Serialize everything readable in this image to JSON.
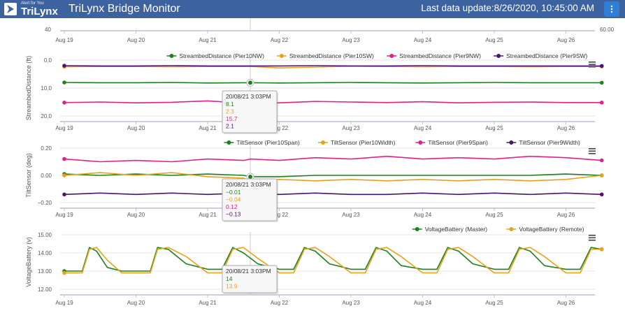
{
  "header": {
    "logo_tagline": "Alert for You",
    "logo_brand": "TriLynx",
    "title": "TriLynx Bridge Monitor",
    "last_update_label": "Last data update:",
    "last_update_value": "8/26/2020, 10:45:00 AM"
  },
  "tooltip_date": "20/08/21 3:03PM",
  "chart_data": [
    {
      "type": "line",
      "ylim": [
        40,
        60
      ],
      "y_ticks": [
        "40",
        "60.00"
      ],
      "categories": [
        "Aug 19",
        "Aug 20",
        "Aug 21",
        "Aug 22",
        "Aug 23",
        "Aug 24",
        "Aug 25",
        "Aug 26"
      ]
    },
    {
      "type": "line",
      "ylabel": "StreambedDistance (ft)",
      "y_inverted": true,
      "ylim": [
        0,
        20
      ],
      "y_ticks": [
        "0.0",
        "10.0",
        "20.0"
      ],
      "categories": [
        "Aug 19",
        "Aug 20",
        "Aug 21",
        "Aug 22",
        "Aug 23",
        "Aug 24",
        "Aug 25",
        "Aug 26"
      ],
      "series": [
        {
          "name": "StreambedDistance (Pier10NW)",
          "color": "#1e7f1e",
          "x": [
            0,
            0.5,
            1,
            1.5,
            2,
            2.5,
            2.6,
            3,
            3.5,
            4,
            4.5,
            5,
            5.5,
            6,
            6.5,
            7,
            7.5
          ],
          "values": [
            8.0,
            8.1,
            8.1,
            8.0,
            8.2,
            8.1,
            8.1,
            8.2,
            8.1,
            8.0,
            8.1,
            8.2,
            8.1,
            8.0,
            8.1,
            8.1,
            8.1
          ]
        },
        {
          "name": "StreambedDistance (Pier10SW)",
          "color": "#e8a21a",
          "x": [
            0,
            0.5,
            1,
            1.5,
            2,
            2.5,
            2.6,
            3,
            3.5,
            4,
            4.5,
            5,
            5.5,
            6,
            6.5,
            7,
            7.5
          ],
          "values": [
            2.4,
            2.3,
            2.3,
            2.4,
            2.3,
            2.3,
            2.3,
            2.8,
            2.5,
            2.2,
            2.3,
            2.4,
            2.3,
            2.3,
            2.4,
            2.3,
            2.3
          ]
        },
        {
          "name": "StreambedDistance (Pier9NW)",
          "color": "#e0218a",
          "x": [
            0,
            0.5,
            1,
            1.5,
            2,
            2.5,
            2.6,
            3,
            3.5,
            4,
            4.5,
            5,
            5.5,
            6,
            6.5,
            7,
            7.5
          ],
          "values": [
            15.2,
            15.0,
            15.3,
            15.1,
            14.6,
            15.4,
            15.7,
            15.3,
            14.8,
            15.0,
            15.2,
            14.9,
            15.3,
            15.1,
            15.0,
            15.2,
            15.2
          ]
        },
        {
          "name": "StreambedDistance (Pier9SW)",
          "color": "#4b1470",
          "x": [
            0,
            0.5,
            1,
            1.5,
            2,
            2.5,
            2.6,
            3,
            3.5,
            4,
            4.5,
            5,
            5.5,
            6,
            6.5,
            7,
            7.5
          ],
          "values": [
            2.0,
            2.1,
            2.1,
            2.0,
            2.1,
            2.1,
            2.1,
            2.1,
            2.0,
            2.1,
            2.1,
            2.0,
            2.1,
            2.1,
            2.1,
            2.1,
            2.1
          ]
        }
      ],
      "tooltip_values": [
        "8.1",
        "2.3",
        "15.7",
        "2.1"
      ]
    },
    {
      "type": "line",
      "ylabel": "TiltSensor (deg)",
      "ylim": [
        -0.2,
        0.2
      ],
      "y_ticks": [
        "0.20",
        "0.00",
        "−0.20"
      ],
      "categories": [
        "Aug 19",
        "Aug 20",
        "Aug 21",
        "Aug 22",
        "Aug 23",
        "Aug 24",
        "Aug 25",
        "Aug 26"
      ],
      "series": [
        {
          "name": "TiltSensor (Pier10Span)",
          "color": "#1e7f1e",
          "x": [
            0,
            0.5,
            1,
            1.5,
            2,
            2.5,
            2.6,
            3,
            3.5,
            4,
            4.5,
            5,
            5.5,
            6,
            6.5,
            7,
            7.5
          ],
          "values": [
            0.01,
            0.0,
            0.01,
            0.0,
            0.01,
            0.0,
            -0.01,
            -0.01,
            0.0,
            0.0,
            0.0,
            0.0,
            0.0,
            0.0,
            0.0,
            0.01,
            0.0
          ]
        },
        {
          "name": "TiltSensor (Pier10Width)",
          "color": "#e8a21a",
          "x": [
            0,
            0.5,
            1,
            1.5,
            2,
            2.5,
            2.6,
            3,
            3.5,
            4,
            4.5,
            5,
            5.5,
            6,
            6.5,
            7,
            7.5
          ],
          "values": [
            0.0,
            0.02,
            0.0,
            0.02,
            -0.01,
            -0.02,
            -0.04,
            -0.03,
            -0.04,
            -0.03,
            -0.04,
            -0.03,
            -0.04,
            -0.03,
            -0.04,
            -0.03,
            0.0
          ]
        },
        {
          "name": "TiltSensor (Pier9Span)",
          "color": "#e0218a",
          "x": [
            0,
            0.5,
            1,
            1.5,
            2,
            2.5,
            2.6,
            3,
            3.5,
            4,
            4.5,
            5,
            5.5,
            6,
            6.5,
            7,
            7.5
          ],
          "values": [
            0.12,
            0.1,
            0.11,
            0.1,
            0.12,
            0.11,
            0.12,
            0.11,
            0.13,
            0.12,
            0.14,
            0.12,
            0.13,
            0.12,
            0.14,
            0.13,
            0.11
          ]
        },
        {
          "name": "TiltSensor (Pier9Width)",
          "color": "#4b1470",
          "x": [
            0,
            0.5,
            1,
            1.5,
            2,
            2.5,
            2.6,
            3,
            3.5,
            4,
            4.5,
            5,
            5.5,
            6,
            6.5,
            7,
            7.5
          ],
          "values": [
            -0.14,
            -0.13,
            -0.14,
            -0.13,
            -0.14,
            -0.13,
            -0.13,
            -0.14,
            -0.13,
            -0.14,
            -0.14,
            -0.13,
            -0.14,
            -0.13,
            -0.14,
            -0.13,
            -0.14
          ]
        }
      ],
      "tooltip_values": [
        "−0.01",
        "−0.04",
        "0.12",
        "−0.13"
      ]
    },
    {
      "type": "line",
      "ylabel": "VoltageBattery (v)",
      "ylim": [
        12,
        15
      ],
      "y_ticks": [
        "15.00",
        "14.00",
        "13.00",
        "12.00"
      ],
      "categories": [
        "Aug 19",
        "Aug 20",
        "Aug 21",
        "Aug 22",
        "Aug 23",
        "Aug 24",
        "Aug 25",
        "Aug 26"
      ],
      "series": [
        {
          "name": "VoltageBattery (Master)",
          "color": "#1e7f1e",
          "x": [
            0,
            0.25,
            0.35,
            0.45,
            0.6,
            0.8,
            1.0,
            1.2,
            1.3,
            1.45,
            1.7,
            2.0,
            2.2,
            2.35,
            2.5,
            2.7,
            3.0,
            3.2,
            3.35,
            3.5,
            3.7,
            4.0,
            4.2,
            4.35,
            4.5,
            4.7,
            5.0,
            5.2,
            5.35,
            5.5,
            5.7,
            6.0,
            6.2,
            6.35,
            6.5,
            6.7,
            7.0,
            7.2,
            7.35,
            7.5
          ],
          "values": [
            13.0,
            13.0,
            14.3,
            14.1,
            13.2,
            13.0,
            13.0,
            13.0,
            14.3,
            14.2,
            13.4,
            13.1,
            13.1,
            14.3,
            14.0,
            13.4,
            13.1,
            13.1,
            14.3,
            14.1,
            13.4,
            13.1,
            13.1,
            14.3,
            14.1,
            13.3,
            13.1,
            13.1,
            14.3,
            14.1,
            13.4,
            13.1,
            13.1,
            14.3,
            14.1,
            13.3,
            13.1,
            13.1,
            14.3,
            14.2
          ]
        },
        {
          "name": "VoltageBattery (Remote)",
          "color": "#e8a21a",
          "x": [
            0,
            0.25,
            0.35,
            0.45,
            0.6,
            0.8,
            1.0,
            1.2,
            1.3,
            1.45,
            1.7,
            2.0,
            2.2,
            2.35,
            2.5,
            2.7,
            3.0,
            3.2,
            3.35,
            3.5,
            3.7,
            4.0,
            4.2,
            4.35,
            4.5,
            4.7,
            5.0,
            5.2,
            5.35,
            5.5,
            5.7,
            6.0,
            6.2,
            6.35,
            6.5,
            6.7,
            7.0,
            7.2,
            7.35,
            7.5
          ],
          "values": [
            12.9,
            12.9,
            14.2,
            14.3,
            13.6,
            12.9,
            12.9,
            12.9,
            14.2,
            14.3,
            13.8,
            12.9,
            12.9,
            14.2,
            14.3,
            13.7,
            12.9,
            12.9,
            14.2,
            14.3,
            13.8,
            12.9,
            12.9,
            14.2,
            14.3,
            13.8,
            12.9,
            12.9,
            14.2,
            14.3,
            13.8,
            12.9,
            12.9,
            14.2,
            14.3,
            13.8,
            12.9,
            12.9,
            14.2,
            14.2
          ]
        }
      ],
      "tooltip_values": [
        "14",
        "13.9"
      ]
    }
  ]
}
